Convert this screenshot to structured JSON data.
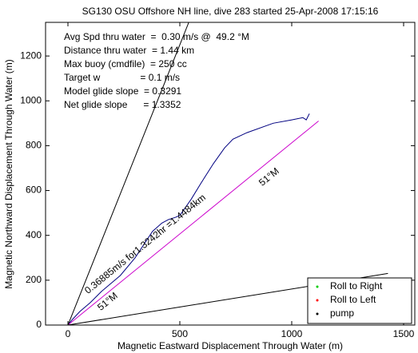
{
  "chart_data": {
    "type": "line",
    "title": "SG130 OSU Offshore NH line, dive 283 started 25-Apr-2008 17:15:16",
    "xlabel": "Magnetic Eastward Displacement Through Water (m)",
    "ylabel": "Magnetic Northward Displacement Through Water (m)",
    "xlim": [
      -100,
      1550
    ],
    "ylim": [
      0,
      1350
    ],
    "xticks": [
      0,
      500,
      1000,
      1500
    ],
    "yticks": [
      0,
      200,
      400,
      600,
      800,
      1000,
      1200
    ],
    "grid": false,
    "lines": [
      {
        "color": "#000080",
        "x": [
          0,
          20,
          54,
          100,
          150,
          234,
          300,
          378,
          420,
          450,
          480,
          500,
          550,
          594,
          650,
          700,
          737,
          800,
          917,
          1000,
          1050,
          1065,
          1079
        ],
        "y": [
          0,
          25,
          61,
          100,
          150,
          221,
          300,
          418,
          455,
          471,
          480,
          489,
          560,
          632,
          720,
          790,
          829,
          858,
          900,
          915,
          925,
          915,
          943
        ]
      },
      {
        "color": "#cc00cc",
        "x": [
          0,
          1120
        ],
        "y": [
          0,
          910
        ]
      },
      {
        "color": "#000000",
        "x": [
          0,
          540
        ],
        "y": [
          0,
          1350
        ]
      },
      {
        "color": "#000000",
        "x": [
          0,
          1430
        ],
        "y": [
          0,
          230
        ]
      }
    ],
    "stats": [
      "Avg Spd thru water  =  0.30 m/s @  49.2 °M",
      "Distance thru water  = 1.44 km",
      "Max buoy (cmdfile)  = 250 cc",
      "Target w               = 0.1 m/s",
      "Model glide slope  = 0.3291",
      "Net glide slope      = 1.3352"
    ],
    "line_labels": [
      "51°M",
      "0.36885m/s for1.3242hr =1.4484km",
      "51°M"
    ],
    "legend": [
      {
        "name": "Roll to Right",
        "color": "#00cc00"
      },
      {
        "name": "Roll to Left",
        "color": "#ff0000"
      },
      {
        "name": "pump",
        "color": "#000000"
      }
    ],
    "legend_loc": "lower right"
  }
}
